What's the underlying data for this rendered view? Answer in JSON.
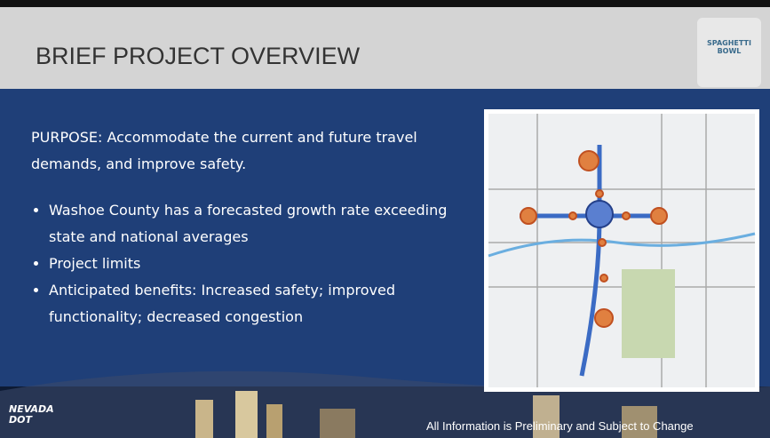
{
  "header": {
    "title": "BRIEF PROJECT OVERVIEW",
    "logo": "SPAGHETTI BOWL"
  },
  "body": {
    "purpose": "PURPOSE: Accommodate the current and future travel demands, and improve safety.",
    "bullets": [
      "Washoe County has a forecasted growth rate exceeding state and national averages",
      "Project limits",
      "Anticipated benefits: Increased safety; improved functionality; decreased congestion"
    ]
  },
  "footer": {
    "note": "All Information is Preliminary and Subject to Change",
    "agency": "NEVADA DOT"
  }
}
